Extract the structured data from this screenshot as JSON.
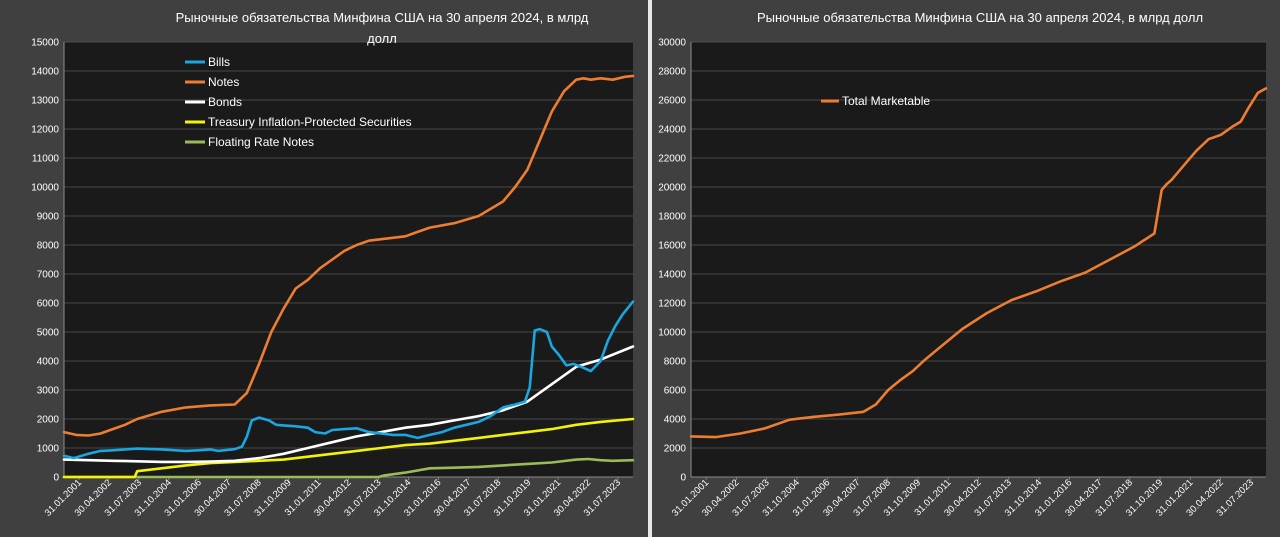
{
  "chart_data": [
    {
      "type": "line",
      "title": "Рыночные обязательства Минфина США на 30 апреля 2024, в млрд долл",
      "xlabel": "",
      "ylabel": "",
      "ylim": [
        0,
        15000
      ],
      "yticks": [
        0,
        1000,
        2000,
        3000,
        4000,
        5000,
        6000,
        7000,
        8000,
        9000,
        10000,
        11000,
        12000,
        13000,
        14000,
        15000
      ],
      "xtick_labels": [
        "31.01.2001",
        "30.04.2002",
        "31.07.2003",
        "31.10.2004",
        "31.01.2006",
        "30.04.2007",
        "31.07.2008",
        "31.10.2009",
        "31.01.2011",
        "30.04.2012",
        "31.07.2013",
        "31.10.2014",
        "31.01.2016",
        "30.04.2017",
        "31.07.2018",
        "31.10.2019",
        "31.01.2021",
        "30.04.2022",
        "31.07.2023"
      ],
      "xlim": [
        2001.0,
        2024.33
      ],
      "grid": true,
      "legend_position": "top-center",
      "series": [
        {
          "name": "Bills",
          "color": "#1aa6e0",
          "x": [
            2001.0,
            2001.4,
            2002.0,
            2002.5,
            2003.0,
            2004.0,
            2005.0,
            2006.0,
            2006.5,
            2007.0,
            2007.3,
            2008.0,
            2008.3,
            2008.5,
            2008.7,
            2009.0,
            2009.4,
            2009.7,
            2010.0,
            2010.5,
            2011.0,
            2011.3,
            2011.7,
            2012.0,
            2012.5,
            2013.0,
            2013.5,
            2014.0,
            2014.5,
            2015.0,
            2015.5,
            2016.0,
            2016.5,
            2017.0,
            2017.5,
            2018.0,
            2018.5,
            2019.0,
            2019.5,
            2019.9,
            2020.1,
            2020.3,
            2020.5,
            2020.8,
            2021.0,
            2021.3,
            2021.6,
            2021.9,
            2022.2,
            2022.6,
            2023.0,
            2023.3,
            2023.6,
            2023.9,
            2024.33
          ],
          "y": [
            730,
            650,
            800,
            900,
            920,
            980,
            950,
            900,
            920,
            950,
            900,
            960,
            1050,
            1400,
            1950,
            2050,
            1950,
            1800,
            1780,
            1750,
            1700,
            1550,
            1500,
            1620,
            1650,
            1680,
            1550,
            1500,
            1450,
            1450,
            1350,
            1450,
            1550,
            1700,
            1800,
            1900,
            2100,
            2400,
            2500,
            2600,
            3100,
            5050,
            5100,
            5000,
            4500,
            4200,
            3850,
            3900,
            3800,
            3650,
            4000,
            4700,
            5200,
            5600,
            6050
          ]
        },
        {
          "name": "Notes",
          "color": "#ed7d31",
          "x": [
            2001.0,
            2001.5,
            2002.0,
            2002.5,
            2003.0,
            2003.5,
            2004.0,
            2005.0,
            2006.0,
            2007.0,
            2008.0,
            2008.5,
            2009.0,
            2009.5,
            2010.0,
            2010.5,
            2011.0,
            2011.5,
            2012.0,
            2012.5,
            2013.0,
            2013.5,
            2014.0,
            2015.0,
            2015.5,
            2016.0,
            2017.0,
            2018.0,
            2019.0,
            2019.5,
            2020.0,
            2020.5,
            2021.0,
            2021.5,
            2022.0,
            2022.3,
            2022.6,
            2023.0,
            2023.5,
            2024.0,
            2024.33
          ],
          "y": [
            1550,
            1450,
            1430,
            1500,
            1650,
            1800,
            2000,
            2250,
            2400,
            2470,
            2500,
            2900,
            3900,
            5000,
            5800,
            6500,
            6800,
            7200,
            7500,
            7800,
            8000,
            8150,
            8200,
            8300,
            8450,
            8600,
            8750,
            9000,
            9500,
            10000,
            10600,
            11600,
            12600,
            13300,
            13700,
            13750,
            13700,
            13750,
            13700,
            13800,
            13830
          ]
        },
        {
          "name": "Bonds",
          "color": "#ffffff",
          "x": [
            2001.0,
            2002.0,
            2003.0,
            2004.0,
            2005.0,
            2006.0,
            2007.0,
            2008.0,
            2009.0,
            2010.0,
            2011.0,
            2012.0,
            2013.0,
            2014.0,
            2015.0,
            2016.0,
            2017.0,
            2018.0,
            2019.0,
            2020.0,
            2021.0,
            2022.0,
            2023.0,
            2024.33
          ],
          "y": [
            600,
            580,
            560,
            540,
            520,
            520,
            530,
            560,
            650,
            800,
            1000,
            1200,
            1400,
            1550,
            1700,
            1800,
            1950,
            2100,
            2300,
            2600,
            3200,
            3800,
            4050,
            4500
          ]
        },
        {
          "name": "Treasury Inflation-Protected Securities",
          "color": "#f2f20a",
          "x": [
            2001.0,
            2003.9,
            2004.0,
            2005.0,
            2006.0,
            2007.0,
            2008.0,
            2009.0,
            2010.0,
            2011.0,
            2012.0,
            2013.0,
            2014.0,
            2015.0,
            2016.0,
            2017.0,
            2018.0,
            2019.0,
            2020.0,
            2021.0,
            2022.0,
            2023.0,
            2024.33
          ],
          "y": [
            0,
            0,
            200,
            300,
            400,
            480,
            520,
            560,
            600,
            700,
            800,
            900,
            1000,
            1100,
            1150,
            1250,
            1350,
            1450,
            1550,
            1650,
            1800,
            1900,
            2000
          ]
        },
        {
          "name": "Floating Rate Notes",
          "color": "#9bbb59",
          "x": [
            2001.0,
            2013.9,
            2014.1,
            2015.0,
            2016.0,
            2017.0,
            2018.0,
            2019.0,
            2020.0,
            2021.0,
            2022.0,
            2022.5,
            2023.0,
            2023.5,
            2024.33
          ],
          "y": [
            0,
            0,
            50,
            150,
            300,
            320,
            350,
            400,
            450,
            500,
            600,
            620,
            580,
            560,
            580
          ]
        }
      ]
    },
    {
      "type": "line",
      "title": "Рыночные обязательства Минфина США на 30 апреля 2024, в млрд долл",
      "xlabel": "",
      "ylabel": "",
      "ylim": [
        0,
        30000
      ],
      "yticks": [
        0,
        2000,
        4000,
        6000,
        8000,
        10000,
        12000,
        14000,
        16000,
        18000,
        20000,
        22000,
        24000,
        26000,
        28000,
        30000
      ],
      "xtick_labels": [
        "31.01.2001",
        "30.04.2002",
        "31.07.2003",
        "31.10.2004",
        "31.01.2006",
        "30.04.2007",
        "31.07.2008",
        "31.10.2009",
        "31.01.2011",
        "30.04.2012",
        "31.07.2013",
        "31.10.2014",
        "31.01.2016",
        "30.04.2017",
        "31.07.2018",
        "31.10.2019",
        "31.01.2021",
        "30.04.2022",
        "31.07.2023"
      ],
      "xlim": [
        2001.0,
        2024.33
      ],
      "grid": true,
      "legend_position": "top-left",
      "series": [
        {
          "name": "Total Marketable",
          "color": "#ed7d31",
          "x": [
            2001.0,
            2002.0,
            2003.0,
            2004.0,
            2005.0,
            2006.0,
            2007.0,
            2008.0,
            2008.5,
            2009.0,
            2009.5,
            2010.0,
            2010.5,
            2011.0,
            2012.0,
            2013.0,
            2014.0,
            2015.0,
            2016.0,
            2017.0,
            2018.0,
            2019.0,
            2019.8,
            2020.1,
            2020.3,
            2020.5,
            2021.0,
            2021.5,
            2022.0,
            2022.5,
            2023.0,
            2023.3,
            2023.6,
            2024.0,
            2024.33
          ],
          "y": [
            2800,
            2750,
            3000,
            3350,
            3950,
            4150,
            4300,
            4500,
            5000,
            6000,
            6700,
            7300,
            8100,
            8800,
            10200,
            11300,
            12200,
            12800,
            13500,
            14100,
            15000,
            15900,
            16800,
            19800,
            20200,
            20500,
            21500,
            22500,
            23300,
            23600,
            24200,
            24500,
            25400,
            26500,
            26800
          ]
        }
      ]
    }
  ]
}
